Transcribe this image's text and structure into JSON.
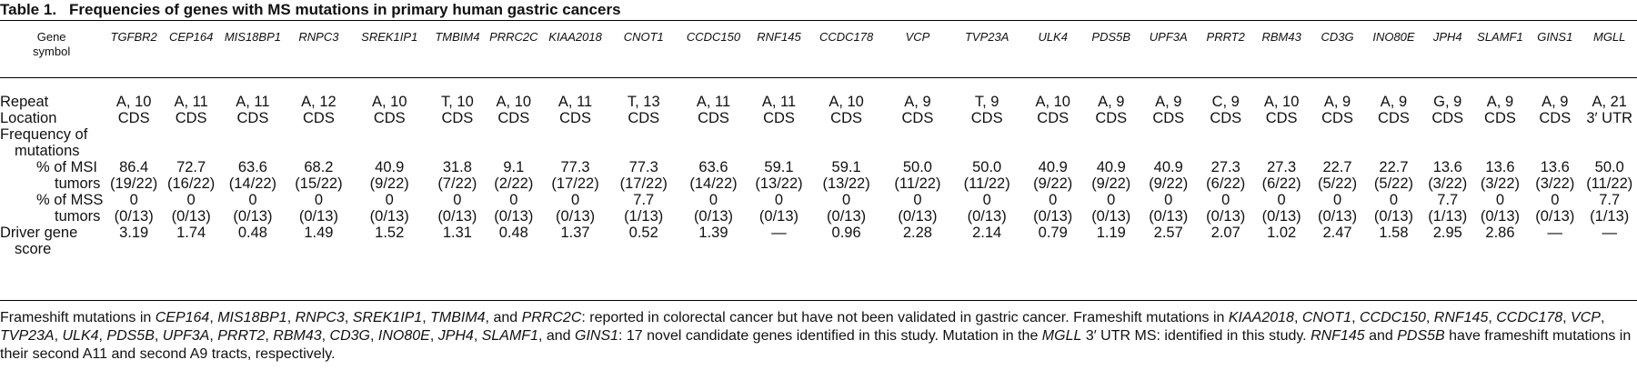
{
  "title": {
    "number": "Table 1.",
    "text": "Frequencies of genes with MS mutations in primary human gastric cancers"
  },
  "header": {
    "gene_symbol": [
      "Gene",
      "symbol"
    ],
    "genes": [
      "TGFBR2",
      "CEP164",
      "MIS18BP1",
      "RNPC3",
      "SREK1IP1",
      "TMBIM4",
      "PRRC2C",
      "KIAA2018",
      "CNOT1",
      "CCDC150",
      "RNF145",
      "CCDC178",
      "VCP",
      "TVP23A",
      "ULK4",
      "PDS5B",
      "UPF3A",
      "PRRT2",
      "RBM43",
      "CD3G",
      "INO80E",
      "JPH4",
      "SLAMF1",
      "GINS1",
      "MGLL"
    ]
  },
  "rows": {
    "repeat_label": "Repeat",
    "repeat": [
      "A, 10",
      "A, 11",
      "A, 11",
      "A, 12",
      "A, 10",
      "T, 10",
      "A, 10",
      "A, 11",
      "T, 13",
      "A, 11",
      "A, 11",
      "A, 10",
      "A, 9",
      "T, 9",
      "A, 10",
      "A, 9",
      "A, 9",
      "C, 9",
      "A, 10",
      "A, 9",
      "A, 9",
      "G, 9",
      "A, 9",
      "A, 9",
      "A, 21"
    ],
    "location_label": "Location",
    "location": [
      "CDS",
      "CDS",
      "CDS",
      "CDS",
      "CDS",
      "CDS",
      "CDS",
      "CDS",
      "CDS",
      "CDS",
      "CDS",
      "CDS",
      "CDS",
      "CDS",
      "CDS",
      "CDS",
      "CDS",
      "CDS",
      "CDS",
      "CDS",
      "CDS",
      "CDS",
      "CDS",
      "CDS",
      "3′ UTR"
    ],
    "freq_label_1": "Frequency of",
    "freq_label_2": "mutations",
    "msi_label_1": "% of MSI",
    "msi_label_2": "tumors",
    "msi_pct": [
      "86.4",
      "72.7",
      "63.6",
      "68.2",
      "40.9",
      "31.8",
      "9.1",
      "77.3",
      "77.3",
      "63.6",
      "59.1",
      "59.1",
      "50.0",
      "50.0",
      "40.9",
      "40.9",
      "40.9",
      "27.3",
      "27.3",
      "22.7",
      "22.7",
      "13.6",
      "13.6",
      "13.6",
      "50.0"
    ],
    "msi_frac": [
      "(19/22)",
      "(16/22)",
      "(14/22)",
      "(15/22)",
      "(9/22)",
      "(7/22)",
      "(2/22)",
      "(17/22)",
      "(17/22)",
      "(14/22)",
      "(13/22)",
      "(13/22)",
      "(11/22)",
      "(11/22)",
      "(9/22)",
      "(9/22)",
      "(9/22)",
      "(6/22)",
      "(6/22)",
      "(5/22)",
      "(5/22)",
      "(3/22)",
      "(3/22)",
      "(3/22)",
      "(11/22)"
    ],
    "mss_label_1": "% of MSS",
    "mss_label_2": "tumors",
    "mss_pct": [
      "0",
      "0",
      "0",
      "0",
      "0",
      "0",
      "0",
      "0",
      "7.7",
      "0",
      "0",
      "0",
      "0",
      "0",
      "0",
      "0",
      "0",
      "0",
      "0",
      "0",
      "0",
      "7.7",
      "0",
      "0",
      "7.7"
    ],
    "mss_frac": [
      "(0/13)",
      "(0/13)",
      "(0/13)",
      "(0/13)",
      "(0/13)",
      "(0/13)",
      "(0/13)",
      "(0/13)",
      "(1/13)",
      "(0/13)",
      "(0/13)",
      "(0/13)",
      "(0/13)",
      "(0/13)",
      "(0/13)",
      "(0/13)",
      "(0/13)",
      "(0/13)",
      "(0/13)",
      "(0/13)",
      "(0/13)",
      "(1/13)",
      "(0/13)",
      "(0/13)",
      "(1/13)"
    ],
    "driver_label_1": "Driver gene",
    "driver_label_2": "score",
    "driver": [
      "3.19",
      "1.74",
      "0.48",
      "1.49",
      "1.52",
      "1.31",
      "0.48",
      "1.37",
      "0.52",
      "1.39",
      "—",
      "0.96",
      "2.28",
      "2.14",
      "0.79",
      "1.19",
      "2.57",
      "2.07",
      "1.02",
      "2.47",
      "1.58",
      "2.95",
      "2.86",
      "—",
      "—"
    ]
  },
  "footnote": [
    {
      "t": "Frameshift mutations in ",
      "i": false
    },
    {
      "t": "CEP164",
      "i": true
    },
    {
      "t": ", ",
      "i": false
    },
    {
      "t": "MIS18BP1",
      "i": true
    },
    {
      "t": ", ",
      "i": false
    },
    {
      "t": "RNPC3",
      "i": true
    },
    {
      "t": ", ",
      "i": false
    },
    {
      "t": "SREK1IP1",
      "i": true
    },
    {
      "t": ", ",
      "i": false
    },
    {
      "t": "TMBIM4",
      "i": true
    },
    {
      "t": ", and ",
      "i": false
    },
    {
      "t": "PRRC2C",
      "i": true
    },
    {
      "t": ": reported in colorectal cancer but have not been validated in gastric cancer. Frameshift mutations in ",
      "i": false
    },
    {
      "t": "KIAA2018",
      "i": true
    },
    {
      "t": ", ",
      "i": false
    },
    {
      "t": "CNOT1",
      "i": true
    },
    {
      "t": ", ",
      "i": false
    },
    {
      "t": "CCDC150",
      "i": true
    },
    {
      "t": ", ",
      "i": false
    },
    {
      "t": "RNF145",
      "i": true
    },
    {
      "t": ", ",
      "i": false
    },
    {
      "t": "CCDC178",
      "i": true
    },
    {
      "t": ", ",
      "i": false
    },
    {
      "t": "VCP",
      "i": true
    },
    {
      "t": ", ",
      "i": false
    },
    {
      "t": "TVP23A",
      "i": true
    },
    {
      "t": ", ",
      "i": false
    },
    {
      "t": "ULK4",
      "i": true
    },
    {
      "t": ", ",
      "i": false
    },
    {
      "t": "PDS5B",
      "i": true
    },
    {
      "t": ", ",
      "i": false
    },
    {
      "t": "UPF3A",
      "i": true
    },
    {
      "t": ", ",
      "i": false
    },
    {
      "t": "PRRT2",
      "i": true
    },
    {
      "t": ", ",
      "i": false
    },
    {
      "t": "RBM43",
      "i": true
    },
    {
      "t": ", ",
      "i": false
    },
    {
      "t": "CD3G",
      "i": true
    },
    {
      "t": ", ",
      "i": false
    },
    {
      "t": "INO80E",
      "i": true
    },
    {
      "t": ", ",
      "i": false
    },
    {
      "t": "JPH4",
      "i": true
    },
    {
      "t": ", ",
      "i": false
    },
    {
      "t": "SLAMF1",
      "i": true
    },
    {
      "t": ", and ",
      "i": false
    },
    {
      "t": "GINS1",
      "i": true
    },
    {
      "t": ": 17 novel candidate genes identified in this study. Mutation in the ",
      "i": false
    },
    {
      "t": "MGLL",
      "i": true
    },
    {
      "t": " 3′ UTR MS: identified in this study. ",
      "i": false
    },
    {
      "t": "RNF145",
      "i": true
    },
    {
      "t": " and ",
      "i": false
    },
    {
      "t": "PDS5B",
      "i": true
    },
    {
      "t": " have frameshift mutations in their second A11 and second A9 tracts, respectively.",
      "i": false
    }
  ]
}
